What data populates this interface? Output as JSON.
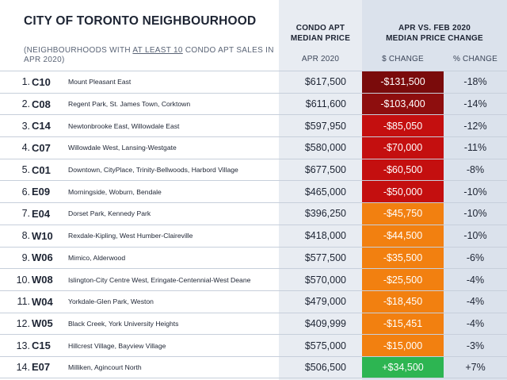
{
  "header": {
    "title": "CITY OF TORONTO NEIGHBOURHOOD",
    "subtitle_pre": "(NEIGHBOURHOODS WITH ",
    "subtitle_emph": "AT LEAST 10",
    "subtitle_post": " CONDO APT SALES IN APR 2020)",
    "price_line1": "CONDO APT",
    "price_line2": "MEDIAN PRICE",
    "change_line1": "APR VS. FEB 2020",
    "change_line2": "MEDIAN PRICE CHANGE",
    "col_apr": "APR 2020",
    "col_dchange": "$ CHANGE",
    "col_pchange": "% CHANGE"
  },
  "colors": {
    "deep_red": "#7a0b0b",
    "darker_red": "#8e0e0e",
    "red": "#c40f0f",
    "orange": "#f28010",
    "green": "#2db552"
  },
  "rows": [
    {
      "rank": "1.",
      "code": "C10",
      "name": "Mount Pleasant East",
      "price": "$617,500",
      "dchange": "-$131,500",
      "pchange": "-18%",
      "color": "#7a0b0b"
    },
    {
      "rank": "2.",
      "code": "C08",
      "name": "Regent Park, St. James Town, Corktown",
      "price": "$611,600",
      "dchange": "-$103,400",
      "pchange": "-14%",
      "color": "#8e0e0e"
    },
    {
      "rank": "3.",
      "code": "C14",
      "name": "Newtonbrooke East, Willowdale East",
      "price": "$597,950",
      "dchange": "-$85,050",
      "pchange": "-12%",
      "color": "#c40f0f"
    },
    {
      "rank": "4.",
      "code": "C07",
      "name": "Willowdale West, Lansing-Westgate",
      "price": "$580,000",
      "dchange": "-$70,000",
      "pchange": "-11%",
      "color": "#c40f0f"
    },
    {
      "rank": "5.",
      "code": "C01",
      "name": "Downtown, CityPlace, Trinity-Bellwoods, Harbord Village",
      "price": "$677,500",
      "dchange": "-$60,500",
      "pchange": "-8%",
      "color": "#c40f0f"
    },
    {
      "rank": "6.",
      "code": "E09",
      "name": "Morningside, Woburn, Bendale",
      "price": "$465,000",
      "dchange": "-$50,000",
      "pchange": "-10%",
      "color": "#c40f0f"
    },
    {
      "rank": "7.",
      "code": "E04",
      "name": "Dorset Park, Kennedy Park",
      "price": "$396,250",
      "dchange": "-$45,750",
      "pchange": "-10%",
      "color": "#f28010"
    },
    {
      "rank": "8.",
      "code": "W10",
      "name": "Rexdale-Kipling, West Humber-Claireville",
      "price": "$418,000",
      "dchange": "-$44,500",
      "pchange": "-10%",
      "color": "#f28010"
    },
    {
      "rank": "9.",
      "code": "W06",
      "name": "Mimico, Alderwood",
      "price": "$577,500",
      "dchange": "-$35,500",
      "pchange": "-6%",
      "color": "#f28010"
    },
    {
      "rank": "10.",
      "code": "W08",
      "name": "Islington-City Centre West, Eringate-Centennial-West Deane",
      "price": "$570,000",
      "dchange": "-$25,500",
      "pchange": "-4%",
      "color": "#f28010"
    },
    {
      "rank": "11.",
      "code": "W04",
      "name": "Yorkdale-Glen Park, Weston",
      "price": "$479,000",
      "dchange": "-$18,450",
      "pchange": "-4%",
      "color": "#f28010"
    },
    {
      "rank": "12.",
      "code": "W05",
      "name": "Black Creek, York University Heights",
      "price": "$409,999",
      "dchange": "-$15,451",
      "pchange": "-4%",
      "color": "#f28010"
    },
    {
      "rank": "13.",
      "code": "C15",
      "name": "Hillcrest Village, Bayview Village",
      "price": "$575,000",
      "dchange": "-$15,000",
      "pchange": "-3%",
      "color": "#f28010"
    },
    {
      "rank": "14.",
      "code": "E07",
      "name": "Milliken, Agincourt North",
      "price": "$506,500",
      "dchange": "+$34,500",
      "pchange": "+7%",
      "color": "#2db552"
    }
  ]
}
